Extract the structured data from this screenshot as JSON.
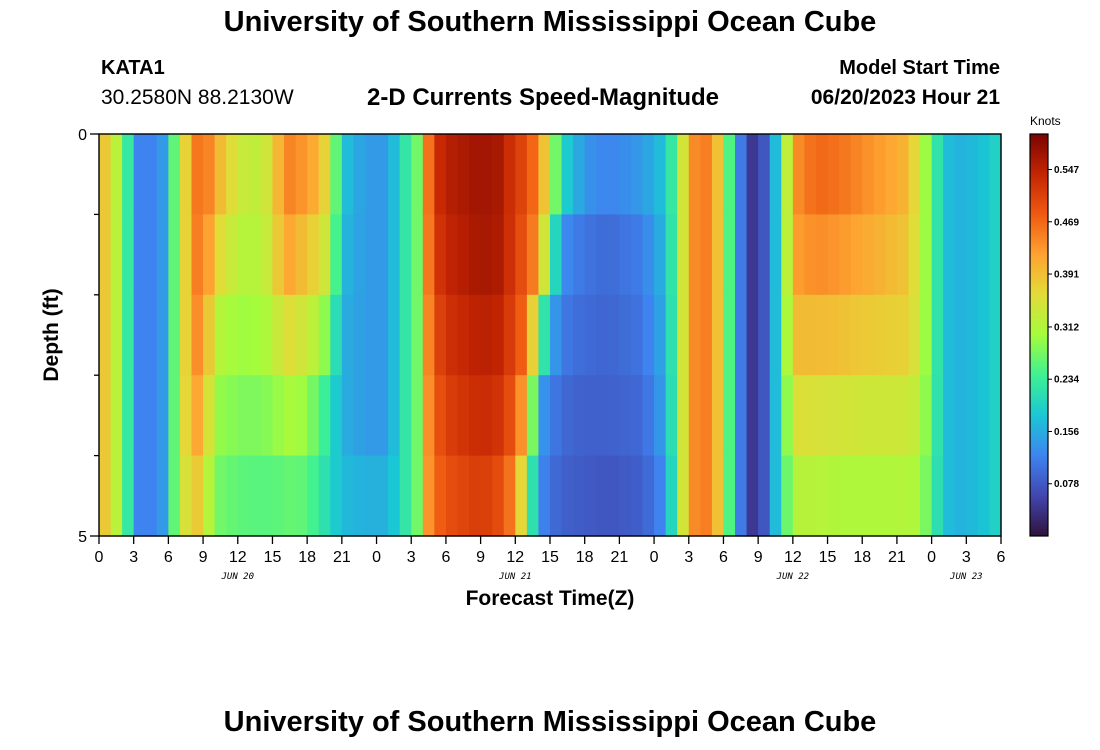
{
  "header": {
    "title": "University of Southern Mississippi Ocean Cube",
    "station_id": "KATA1",
    "coords": "30.2580N  88.2130W",
    "subtitle": "2-D Currents Speed-Magnitude",
    "model_start_label": "Model Start Time",
    "model_start_value": "06/20/2023 Hour 21"
  },
  "footer": {
    "title": "University of Southern Mississippi Ocean Cube"
  },
  "chart_data": {
    "type": "heatmap",
    "title": "2-D Currents Speed-Magnitude",
    "xlabel": "Forecast Time(Z)",
    "ylabel": "Depth (ft)",
    "x_unit": "hours from 06/20/2023 00Z",
    "xlim": [
      0,
      78
    ],
    "ylim": [
      0,
      5
    ],
    "y_ticks": [
      0,
      5
    ],
    "x_ticks": [
      {
        "h": 0,
        "label": "0"
      },
      {
        "h": 3,
        "label": "3"
      },
      {
        "h": 6,
        "label": "6"
      },
      {
        "h": 9,
        "label": "9"
      },
      {
        "h": 12,
        "label": "12"
      },
      {
        "h": 15,
        "label": "15"
      },
      {
        "h": 18,
        "label": "18"
      },
      {
        "h": 21,
        "label": "21"
      },
      {
        "h": 24,
        "label": "0"
      },
      {
        "h": 27,
        "label": "3"
      },
      {
        "h": 30,
        "label": "6"
      },
      {
        "h": 33,
        "label": "9"
      },
      {
        "h": 36,
        "label": "12"
      },
      {
        "h": 39,
        "label": "15"
      },
      {
        "h": 42,
        "label": "18"
      },
      {
        "h": 45,
        "label": "21"
      },
      {
        "h": 48,
        "label": "0"
      },
      {
        "h": 51,
        "label": "3"
      },
      {
        "h": 54,
        "label": "6"
      },
      {
        "h": 57,
        "label": "9"
      },
      {
        "h": 60,
        "label": "12"
      },
      {
        "h": 63,
        "label": "15"
      },
      {
        "h": 66,
        "label": "18"
      },
      {
        "h": 69,
        "label": "21"
      },
      {
        "h": 72,
        "label": "0"
      },
      {
        "h": 75,
        "label": "3"
      },
      {
        "h": 78,
        "label": "6"
      }
    ],
    "date_labels": [
      {
        "h": 12,
        "label": "JUN 20"
      },
      {
        "h": 36,
        "label": "JUN 21"
      },
      {
        "h": 60,
        "label": "JUN 22"
      },
      {
        "h": 75,
        "label": "JUN 23"
      }
    ],
    "depth_levels": [
      0,
      1,
      2,
      3,
      4,
      5
    ],
    "anchor_hours": [
      0,
      1,
      2,
      3.5,
      5,
      6,
      6.5,
      7,
      8,
      9,
      10,
      11,
      13,
      15,
      16,
      17,
      18,
      19,
      20,
      21,
      23,
      25,
      26,
      27.5,
      28,
      29,
      30,
      33,
      35,
      36,
      37,
      38,
      39,
      40,
      42,
      44,
      47,
      49,
      50,
      51,
      52,
      53,
      54,
      55,
      56,
      57,
      58,
      59,
      60,
      62,
      64,
      66,
      68,
      70,
      71,
      72,
      73,
      74,
      76,
      78
    ],
    "speed_knots": [
      [
        0.4,
        0.36,
        0.28,
        0.12,
        0.12,
        0.16,
        0.26,
        0.3,
        0.44,
        0.47,
        0.42,
        0.37,
        0.32,
        0.35,
        0.45,
        0.44,
        0.45,
        0.42,
        0.34,
        0.18,
        0.14,
        0.14,
        0.2,
        0.27,
        0.4,
        0.52,
        0.55,
        0.57,
        0.56,
        0.5,
        0.52,
        0.43,
        0.34,
        0.26,
        0.16,
        0.14,
        0.16,
        0.18,
        0.27,
        0.42,
        0.46,
        0.44,
        0.34,
        0.16,
        0.06,
        0.03,
        0.12,
        0.22,
        0.43,
        0.48,
        0.47,
        0.45,
        0.43,
        0.41,
        0.33,
        0.26,
        0.18,
        0.16,
        0.17,
        0.2
      ],
      [
        0.4,
        0.36,
        0.28,
        0.12,
        0.12,
        0.16,
        0.26,
        0.3,
        0.44,
        0.47,
        0.42,
        0.37,
        0.32,
        0.35,
        0.45,
        0.44,
        0.4,
        0.38,
        0.34,
        0.18,
        0.14,
        0.14,
        0.2,
        0.27,
        0.4,
        0.52,
        0.55,
        0.57,
        0.56,
        0.5,
        0.5,
        0.43,
        0.34,
        0.14,
        0.11,
        0.1,
        0.12,
        0.18,
        0.27,
        0.42,
        0.46,
        0.44,
        0.34,
        0.16,
        0.06,
        0.03,
        0.12,
        0.22,
        0.43,
        0.46,
        0.45,
        0.43,
        0.41,
        0.39,
        0.33,
        0.26,
        0.18,
        0.16,
        0.17,
        0.2
      ],
      [
        0.4,
        0.36,
        0.28,
        0.12,
        0.12,
        0.16,
        0.26,
        0.3,
        0.44,
        0.45,
        0.34,
        0.31,
        0.3,
        0.33,
        0.39,
        0.38,
        0.36,
        0.35,
        0.3,
        0.16,
        0.14,
        0.14,
        0.2,
        0.27,
        0.4,
        0.5,
        0.53,
        0.56,
        0.55,
        0.5,
        0.48,
        0.4,
        0.2,
        0.12,
        0.1,
        0.09,
        0.11,
        0.16,
        0.27,
        0.42,
        0.46,
        0.44,
        0.34,
        0.16,
        0.06,
        0.03,
        0.12,
        0.22,
        0.41,
        0.42,
        0.41,
        0.4,
        0.39,
        0.38,
        0.33,
        0.26,
        0.18,
        0.16,
        0.17,
        0.2
      ],
      [
        0.4,
        0.36,
        0.28,
        0.12,
        0.12,
        0.16,
        0.26,
        0.3,
        0.44,
        0.42,
        0.31,
        0.3,
        0.29,
        0.3,
        0.32,
        0.33,
        0.3,
        0.28,
        0.22,
        0.16,
        0.14,
        0.14,
        0.2,
        0.27,
        0.4,
        0.48,
        0.52,
        0.54,
        0.53,
        0.48,
        0.45,
        0.16,
        0.12,
        0.1,
        0.09,
        0.09,
        0.1,
        0.16,
        0.27,
        0.42,
        0.46,
        0.44,
        0.34,
        0.16,
        0.06,
        0.03,
        0.12,
        0.22,
        0.38,
        0.37,
        0.37,
        0.36,
        0.36,
        0.36,
        0.33,
        0.26,
        0.18,
        0.16,
        0.17,
        0.2
      ],
      [
        0.4,
        0.36,
        0.28,
        0.12,
        0.12,
        0.16,
        0.26,
        0.3,
        0.42,
        0.38,
        0.28,
        0.27,
        0.26,
        0.27,
        0.28,
        0.29,
        0.27,
        0.24,
        0.2,
        0.16,
        0.14,
        0.14,
        0.2,
        0.27,
        0.4,
        0.47,
        0.5,
        0.53,
        0.51,
        0.46,
        0.35,
        0.14,
        0.11,
        0.09,
        0.08,
        0.08,
        0.09,
        0.14,
        0.27,
        0.42,
        0.46,
        0.44,
        0.34,
        0.16,
        0.06,
        0.03,
        0.12,
        0.22,
        0.33,
        0.33,
        0.32,
        0.32,
        0.32,
        0.32,
        0.31,
        0.25,
        0.18,
        0.16,
        0.17,
        0.2
      ],
      [
        0.4,
        0.36,
        0.28,
        0.12,
        0.12,
        0.16,
        0.26,
        0.3,
        0.38,
        0.33,
        0.27,
        0.26,
        0.25,
        0.24,
        0.24,
        0.24,
        0.24,
        0.22,
        0.2,
        0.18,
        0.18,
        0.18,
        0.2,
        0.27,
        0.4,
        0.46,
        0.48,
        0.5,
        0.47,
        0.4,
        0.25,
        0.12,
        0.1,
        0.08,
        0.08,
        0.07,
        0.08,
        0.12,
        0.27,
        0.42,
        0.46,
        0.44,
        0.34,
        0.16,
        0.06,
        0.03,
        0.12,
        0.22,
        0.3,
        0.31,
        0.3,
        0.3,
        0.3,
        0.31,
        0.3,
        0.24,
        0.18,
        0.16,
        0.17,
        0.2
      ]
    ],
    "colorbar": {
      "label": "Knots",
      "min": 0.0,
      "max": 0.6,
      "ticks": [
        0.078,
        0.156,
        0.234,
        0.312,
        0.391,
        0.469,
        0.547
      ],
      "tick_labels": [
        "0.078",
        "0.156",
        "0.234",
        "0.312",
        "0.391",
        "0.469",
        "0.547"
      ],
      "colors": [
        "#30123b",
        "#4146b0",
        "#3e84f0",
        "#1ac7d4",
        "#3ef193",
        "#a4fc3c",
        "#e2dc38",
        "#fea331",
        "#ef5a11",
        "#c42503",
        "#7a0403"
      ]
    }
  }
}
